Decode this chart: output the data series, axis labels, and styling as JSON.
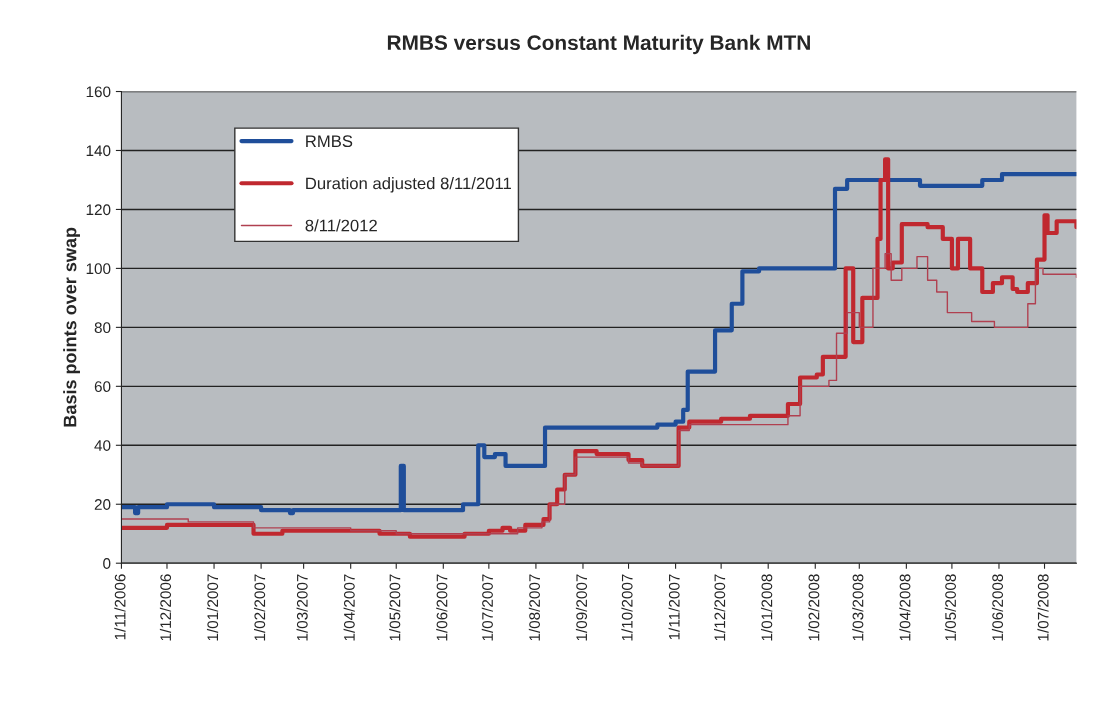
{
  "chart_data": {
    "type": "step",
    "title": "RMBS versus Constant Maturity Bank MTN",
    "ylabel": "Basis points over swap",
    "xlim": [
      "2006-11-01",
      "2008-07-22"
    ],
    "xticks": [
      {
        "value": "2006-11-01",
        "label": "1/11/2006"
      },
      {
        "value": "2006-12-01",
        "label": "1/12/2006"
      },
      {
        "value": "2007-01-01",
        "label": "1/01/2007"
      },
      {
        "value": "2007-02-01",
        "label": "1/02/2007"
      },
      {
        "value": "2007-03-01",
        "label": "1/03/2007"
      },
      {
        "value": "2007-04-01",
        "label": "1/04/2007"
      },
      {
        "value": "2007-05-01",
        "label": "1/05/2007"
      },
      {
        "value": "2007-06-01",
        "label": "1/06/2007"
      },
      {
        "value": "2007-07-01",
        "label": "1/07/2007"
      },
      {
        "value": "2007-08-01",
        "label": "1/08/2007"
      },
      {
        "value": "2007-09-01",
        "label": "1/09/2007"
      },
      {
        "value": "2007-10-01",
        "label": "1/10/2007"
      },
      {
        "value": "2007-11-01",
        "label": "1/11/2007"
      },
      {
        "value": "2007-12-01",
        "label": "1/12/2007"
      },
      {
        "value": "2008-01-01",
        "label": "1/01/2008"
      },
      {
        "value": "2008-02-01",
        "label": "1/02/2008"
      },
      {
        "value": "2008-03-01",
        "label": "1/03/2008"
      },
      {
        "value": "2008-04-01",
        "label": "1/04/2008"
      },
      {
        "value": "2008-05-01",
        "label": "1/05/2008"
      },
      {
        "value": "2008-06-01",
        "label": "1/06/2008"
      },
      {
        "value": "2008-07-01",
        "label": "1/07/2008"
      }
    ],
    "ylim": [
      0,
      160
    ],
    "yticks": [
      0,
      20,
      40,
      60,
      80,
      100,
      120,
      140,
      160
    ],
    "grid": "y",
    "legend": "top left",
    "series": [
      {
        "name": "RMBS",
        "color": "#1f4e9a",
        "x": [
          "2006-11-01",
          "2006-11-10",
          "2006-11-12",
          "2006-12-01",
          "2007-01-01",
          "2007-02-01",
          "2007-02-20",
          "2007-02-22",
          "2007-05-02",
          "2007-05-04",
          "2007-05-06",
          "2007-06-14",
          "2007-06-24",
          "2007-06-28",
          "2007-07-05",
          "2007-07-12",
          "2007-08-07",
          "2007-10-20",
          "2007-11-01",
          "2007-11-06",
          "2007-11-09",
          "2007-11-27",
          "2007-12-08",
          "2007-12-15",
          "2007-12-26",
          "2008-02-14",
          "2008-02-22",
          "2008-04-10",
          "2008-05-21",
          "2008-06-03",
          "2008-07-22"
        ],
        "values": [
          19,
          17,
          19,
          20,
          19,
          18,
          17,
          18,
          18,
          33,
          18,
          20,
          40,
          36,
          37,
          33,
          46,
          47,
          48,
          52,
          65,
          79,
          88,
          99,
          100,
          127,
          130,
          128,
          130,
          132,
          132
        ]
      },
      {
        "name": "Duration adjusted 8/11/2011",
        "color": "#c0282f",
        "x": [
          "2006-11-01",
          "2006-12-01",
          "2007-01-27",
          "2007-02-15",
          "2007-04-20",
          "2007-05-10",
          "2007-06-15",
          "2007-07-01",
          "2007-07-10",
          "2007-07-15",
          "2007-07-25",
          "2007-08-06",
          "2007-08-10",
          "2007-08-15",
          "2007-08-20",
          "2007-08-27",
          "2007-09-10",
          "2007-10-01",
          "2007-10-10",
          "2007-11-03",
          "2007-11-10",
          "2007-12-01",
          "2007-12-20",
          "2008-01-14",
          "2008-01-22",
          "2008-02-02",
          "2008-02-06",
          "2008-02-21",
          "2008-02-26",
          "2008-03-03",
          "2008-03-13",
          "2008-03-15",
          "2008-03-18",
          "2008-03-20",
          "2008-03-23",
          "2008-03-29",
          "2008-04-15",
          "2008-04-25",
          "2008-05-01",
          "2008-05-05",
          "2008-05-13",
          "2008-05-21",
          "2008-05-28",
          "2008-06-03",
          "2008-06-10",
          "2008-06-13",
          "2008-06-20",
          "2008-06-26",
          "2008-07-01",
          "2008-07-03",
          "2008-07-09",
          "2008-07-22"
        ],
        "values": [
          12,
          13,
          10,
          11,
          10,
          9,
          10,
          11,
          12,
          11,
          13,
          15,
          20,
          25,
          30,
          38,
          37,
          35,
          33,
          46,
          48,
          49,
          50,
          54,
          63,
          64,
          70,
          100,
          75,
          90,
          110,
          130,
          137,
          100,
          102,
          115,
          114,
          110,
          100,
          110,
          100,
          92,
          95,
          97,
          93,
          92,
          95,
          103,
          118,
          112,
          116,
          114
        ]
      },
      {
        "name": "8/11/2012",
        "color": "#b04050",
        "x": [
          "2006-11-01",
          "2006-12-15",
          "2007-01-27",
          "2007-04-01",
          "2007-05-01",
          "2007-07-01",
          "2007-07-20",
          "2007-08-05",
          "2007-08-10",
          "2007-08-20",
          "2007-08-27",
          "2007-10-01",
          "2007-10-10",
          "2007-11-03",
          "2007-11-10",
          "2008-01-14",
          "2008-01-22",
          "2008-02-10",
          "2008-02-15",
          "2008-02-22",
          "2008-03-01",
          "2008-03-10",
          "2008-03-18",
          "2008-03-22",
          "2008-03-29",
          "2008-04-08",
          "2008-04-15",
          "2008-04-21",
          "2008-04-28",
          "2008-05-14",
          "2008-05-29",
          "2008-06-16",
          "2008-06-20",
          "2008-06-25",
          "2008-06-30",
          "2008-07-22"
        ],
        "values": [
          15,
          14,
          12,
          11,
          10,
          10,
          12,
          14,
          20,
          30,
          36,
          34,
          33,
          45,
          47,
          50,
          60,
          62,
          78,
          85,
          80,
          100,
          105,
          96,
          100,
          104,
          96,
          92,
          85,
          82,
          80,
          80,
          88,
          100,
          98,
          97
        ]
      }
    ]
  }
}
